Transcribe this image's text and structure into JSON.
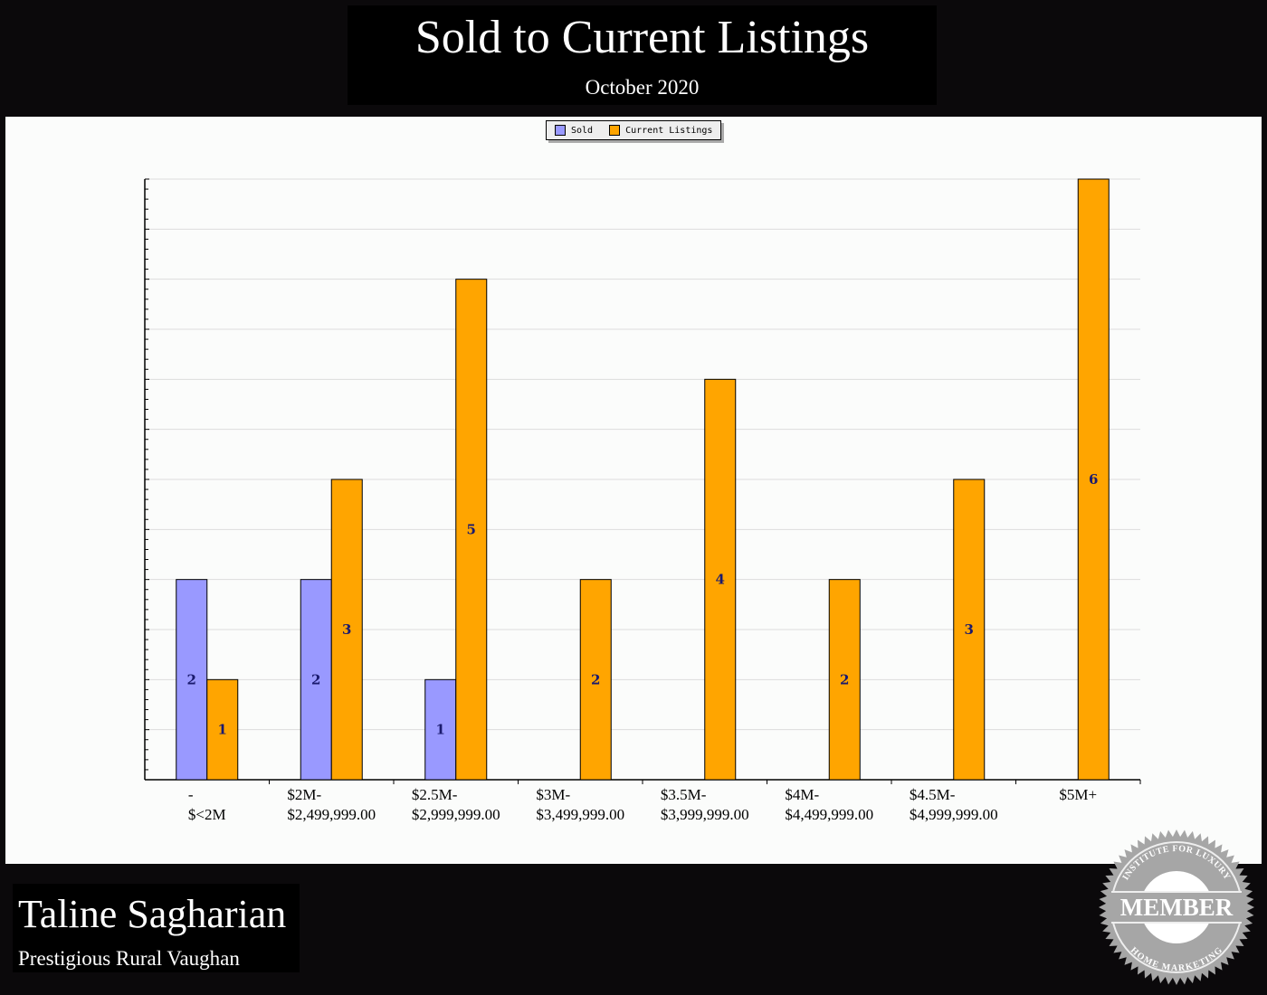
{
  "header": {
    "title": "Sold to Current Listings",
    "subtitle": "October 2020"
  },
  "footer": {
    "agent_name": "Taline Sagharian",
    "area": "Prestigious Rural Vaughan",
    "badge_text": {
      "top": "INSTITUTE FOR LUXURY",
      "center": "MEMBER",
      "bottom": "HOME MARKETING"
    }
  },
  "chart_data": {
    "type": "bar",
    "title": "Sold to Current Listings",
    "subtitle": "October 2020",
    "categories": [
      [
        "-",
        "$<2M"
      ],
      [
        "$2M-",
        "$2,499,999.00"
      ],
      [
        "$2.5M-",
        "$2,999,999.00"
      ],
      [
        "$3M-",
        "$3,499,999.00"
      ],
      [
        "$3.5M-",
        "$3,999,999.00"
      ],
      [
        "$4M-",
        "$4,499,999.00"
      ],
      [
        "$4.5M-",
        "$4,999,999.00"
      ],
      [
        "$5M+"
      ]
    ],
    "series": [
      {
        "name": "Sold",
        "color": "#9999ff",
        "values": [
          2,
          2,
          1,
          0,
          0,
          0,
          0,
          0
        ]
      },
      {
        "name": "Current Listings",
        "color": "#ffa500",
        "values": [
          1,
          3,
          5,
          2,
          4,
          2,
          3,
          6
        ]
      }
    ],
    "ylim": [
      0,
      6
    ],
    "grid": true,
    "legend": "top-center",
    "label_color": "#1a1a6e"
  }
}
